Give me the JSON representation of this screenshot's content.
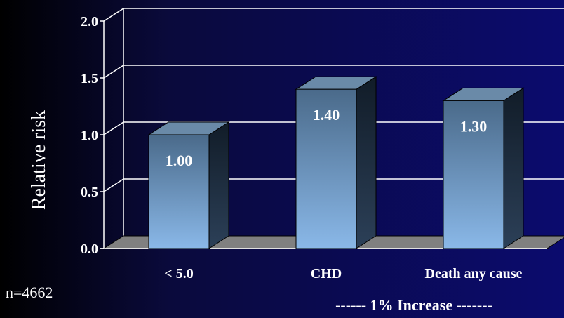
{
  "chart_data": {
    "type": "bar",
    "categories": [
      "< 5.0",
      "CHD",
      "Death any cause"
    ],
    "values": [
      1.0,
      1.4,
      1.3
    ],
    "data_labels": [
      "1.00",
      "1.40",
      "1.30"
    ],
    "ylabel": "Relative risk",
    "xlabel": "------  1% Increase -------",
    "ylim": [
      0,
      2.0
    ],
    "yticks": [
      "0.0",
      "0.5",
      "1.0",
      "1.5",
      "2.0"
    ],
    "grid": true,
    "style": "3d",
    "colors": {
      "bar_top": "#4a6a8a",
      "bar_bottom": "#8ab8e8",
      "bar_side": "#1c2c3c",
      "bar_cap": "#6a8aa8",
      "floor": "#808080",
      "grid": "#ffffff",
      "text": "#ffffff"
    }
  },
  "footnote": "n=4662"
}
